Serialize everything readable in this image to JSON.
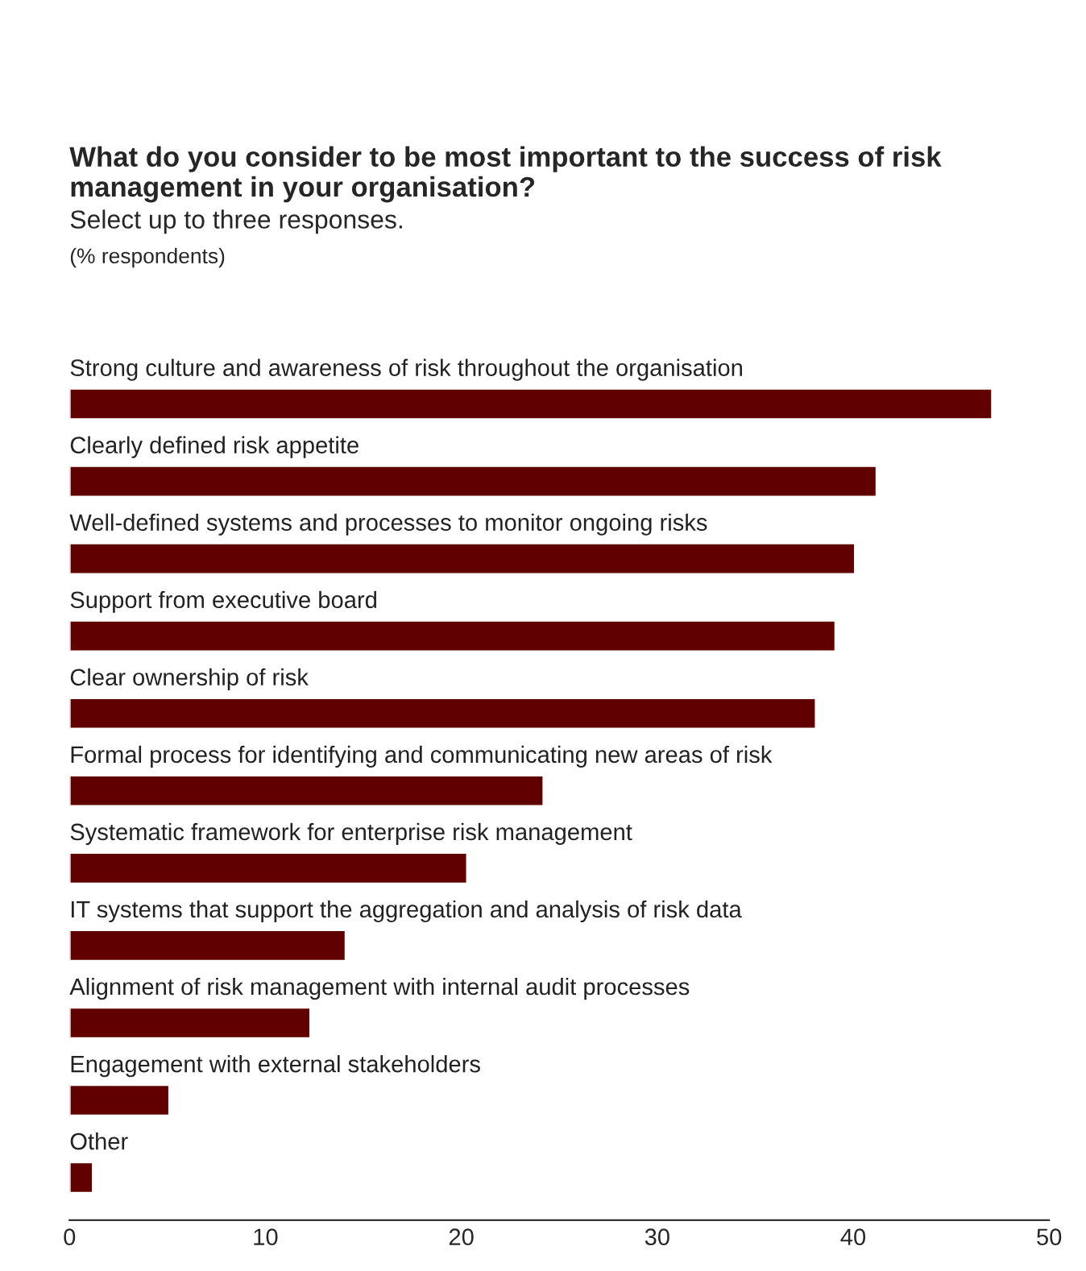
{
  "chart_data": {
    "type": "bar",
    "orientation": "horizontal",
    "title": "What do you consider to be most important to the success of risk management in your organisation?",
    "subtitle": "Select up to three responses.",
    "annotations": [
      "(% respondents)"
    ],
    "categories": [
      "Strong culture and awareness of risk throughout the organisation",
      "Clearly defined risk appetite",
      "Well-defined systems and processes to monitor ongoing risks",
      "Support from executive board",
      "Clear ownership of risk",
      "Formal process for identifying and communicating new areas of risk",
      "Systematic framework for enterprise risk management",
      "IT systems that support the aggregation and analysis of risk data",
      "Alignment of risk management with internal audit processes",
      "Engagement with external stakeholders",
      "Other"
    ],
    "values": [
      47.1,
      41.2,
      40.1,
      39.1,
      38.1,
      24.2,
      20.3,
      14.1,
      12.3,
      5.1,
      1.2
    ],
    "color": "#600000",
    "xlim": [
      0,
      50
    ],
    "xticks": [
      0,
      10,
      20,
      30,
      40,
      50
    ],
    "grid": false
  }
}
